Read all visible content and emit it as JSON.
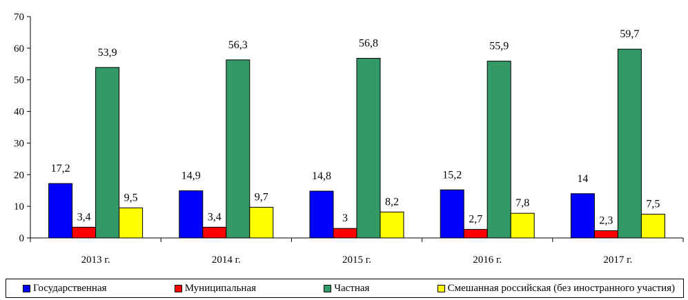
{
  "chart_data": {
    "type": "bar",
    "categories": [
      "2013 г.",
      "2014 г.",
      "2015 г.",
      "2016 г.",
      "2017 г."
    ],
    "series": [
      {
        "name": "Государственная",
        "color": "#0000FF",
        "values": [
          17.2,
          14.9,
          14.8,
          15.2,
          14
        ],
        "labels": [
          "17,2",
          "14,9",
          "14,8",
          "15,2",
          "14"
        ]
      },
      {
        "name": "Муниципальная",
        "color": "#FF0000",
        "values": [
          3.4,
          3.4,
          3.0,
          2.7,
          2.3
        ],
        "labels": [
          "3,4",
          "3,4",
          "3",
          "2,7",
          "2,3"
        ]
      },
      {
        "name": "Частная",
        "color": "#339966",
        "values": [
          53.9,
          56.3,
          56.8,
          55.9,
          59.7
        ],
        "labels": [
          "53,9",
          "56,3",
          "56,8",
          "55,9",
          "59,7"
        ]
      },
      {
        "name": "Смешанная российская (без иностранного участия)",
        "color": "#FFFF00",
        "values": [
          9.5,
          9.7,
          8.2,
          7.8,
          7.5
        ],
        "labels": [
          "9,5",
          "9,7",
          "8,2",
          "7,8",
          "7,5"
        ]
      }
    ],
    "yticks": [
      "0",
      "10",
      "20",
      "30",
      "40",
      "50",
      "60",
      "70"
    ],
    "ylim": [
      0,
      70
    ],
    "title": "",
    "xlabel": "",
    "ylabel": "",
    "legend_position": "bottom",
    "grid": false
  }
}
